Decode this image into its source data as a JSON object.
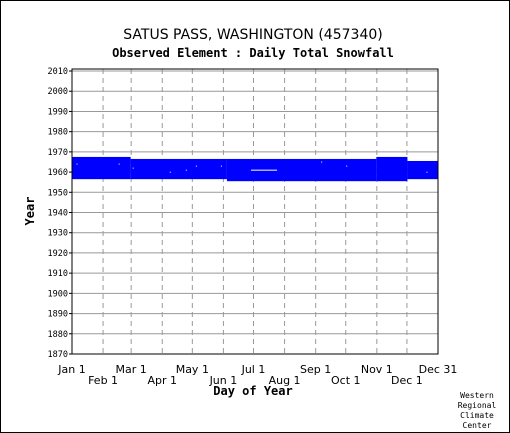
{
  "chart_data": {
    "type": "bar",
    "title": "SATUS PASS, WASHINGTON   (457340)",
    "subtitle": "Observed Element : Daily Total Snowfall",
    "xlabel": "Day of Year",
    "ylabel": "Year",
    "ylim": [
      1870,
      2011
    ],
    "xlim": [
      1,
      366
    ],
    "yticks": [
      1870,
      1880,
      1890,
      1900,
      1910,
      1920,
      1930,
      1940,
      1950,
      1960,
      1970,
      1980,
      1990,
      2000,
      2010
    ],
    "xticks_upper": [
      {
        "label": "Jan 1",
        "day": 1
      },
      {
        "label": "Mar 1",
        "day": 60
      },
      {
        "label": "May 1",
        "day": 121
      },
      {
        "label": "Jul 1",
        "day": 182
      },
      {
        "label": "Sep 1",
        "day": 244
      },
      {
        "label": "Nov 1",
        "day": 305
      },
      {
        "label": "Dec 31",
        "day": 366
      }
    ],
    "xticks_lower": [
      {
        "label": "Feb 1",
        "day": 32
      },
      {
        "label": "Apr 1",
        "day": 91
      },
      {
        "label": "Jun 1",
        "day": 152
      },
      {
        "label": "Aug 1",
        "day": 213
      },
      {
        "label": "Oct 1",
        "day": 274
      },
      {
        "label": "Dec 1",
        "day": 335
      }
    ],
    "grid": true,
    "series_color": "#0000ff",
    "coverage": [
      {
        "start_day": 1,
        "end_day": 59,
        "from_year": 1957,
        "to_year": 1967
      },
      {
        "start_day": 60,
        "end_day": 155,
        "from_year": 1957,
        "to_year": 1966
      },
      {
        "start_day": 156,
        "end_day": 304,
        "from_year": 1956,
        "to_year": 1966
      },
      {
        "start_day": 305,
        "end_day": 335,
        "from_year": 1956,
        "to_year": 1967
      },
      {
        "start_day": 336,
        "end_day": 366,
        "from_year": 1957,
        "to_year": 1965
      }
    ],
    "missing": [
      {
        "start_day": 180,
        "end_day": 205,
        "year": 1961
      },
      {
        "start_day": 6,
        "end_day": 6,
        "year": 1964
      },
      {
        "start_day": 48,
        "end_day": 48,
        "year": 1964
      },
      {
        "start_day": 99,
        "end_day": 99,
        "year": 1960
      },
      {
        "start_day": 115,
        "end_day": 115,
        "year": 1961
      },
      {
        "start_day": 125,
        "end_day": 125,
        "year": 1963
      },
      {
        "start_day": 150,
        "end_day": 150,
        "year": 1963
      },
      {
        "start_day": 62,
        "end_day": 62,
        "year": 1962
      },
      {
        "start_day": 250,
        "end_day": 250,
        "year": 1965
      },
      {
        "start_day": 275,
        "end_day": 275,
        "year": 1963
      },
      {
        "start_day": 355,
        "end_day": 355,
        "year": 1960
      }
    ],
    "credit": [
      "Western",
      "Regional",
      "Climate",
      "Center"
    ]
  }
}
